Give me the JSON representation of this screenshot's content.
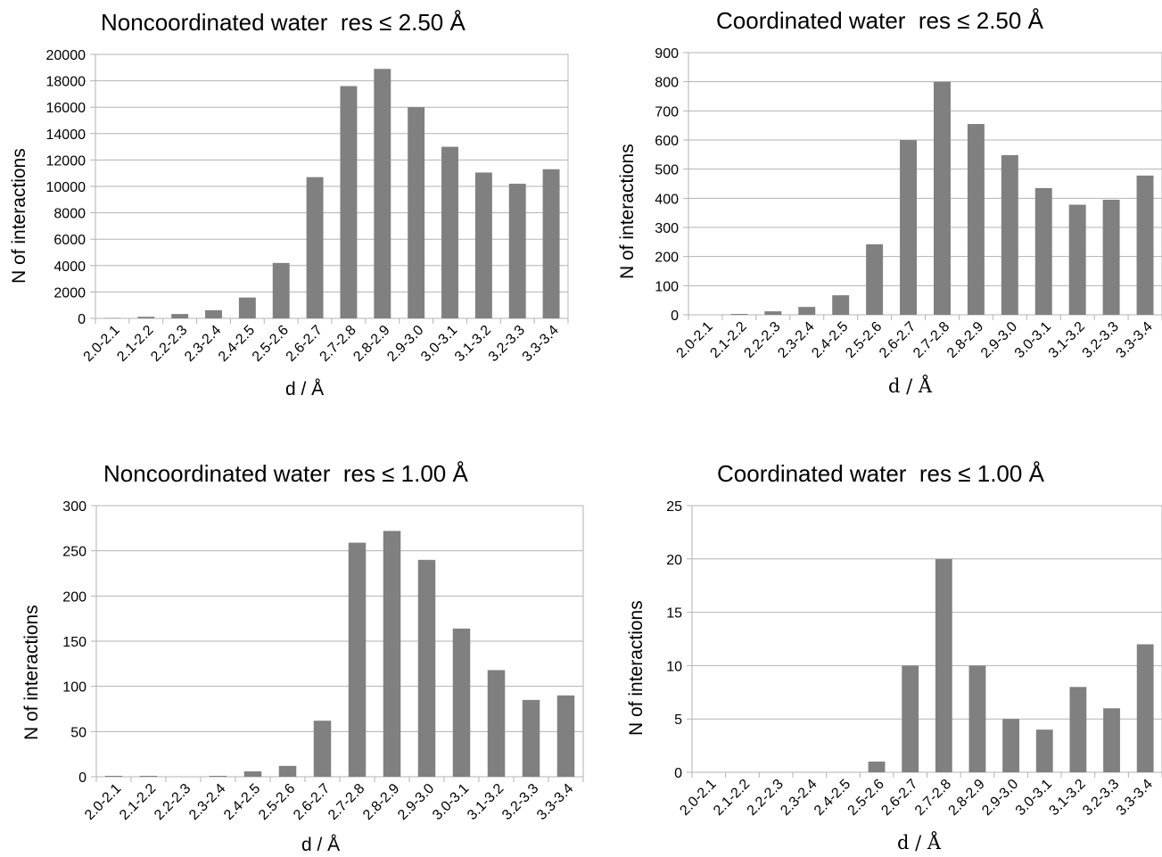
{
  "colors": {
    "bar": "#808080",
    "grid": "#b3b3b3",
    "axis": "#b3b3b3",
    "text": "#000000"
  },
  "chart_data": [
    {
      "type": "bar",
      "title": "Noncoordinated water  res ≤ 2.50 Å",
      "xlabel": "d / Å",
      "ylabel": "N of interactions",
      "categories": [
        "2.0-2.1",
        "2.1-2.2",
        "2.2-2.3",
        "2.3-2.4",
        "2.4-2.5",
        "2.5-2.6",
        "2.6-2.7",
        "2.7-2.8",
        "2.8-2.9",
        "2.9-3.0",
        "3.0-3.1",
        "3.1-3.2",
        "3.2-3.3",
        "3.3-3.4"
      ],
      "values": [
        30,
        120,
        330,
        620,
        1580,
        4200,
        10700,
        17600,
        18900,
        16000,
        13000,
        11050,
        10200,
        11300
      ],
      "ylim": [
        0,
        20000
      ],
      "yticks": [
        0,
        2000,
        4000,
        6000,
        8000,
        10000,
        12000,
        14000,
        16000,
        18000,
        20000
      ],
      "grid": true
    },
    {
      "type": "bar",
      "title": "Coordinated water  res ≤ 2.50 Å",
      "xlabel": "d / Å",
      "ylabel": "N of interactions",
      "categories": [
        "2.0-2.1",
        "2.1-2.2",
        "2.2-2.3",
        "2.3-2.4",
        "2.4-2.5",
        "2.5-2.6",
        "2.6-2.7",
        "2.7-2.8",
        "2.8-2.9",
        "2.9-3.0",
        "3.0-3.1",
        "3.1-3.2",
        "3.2-3.3",
        "3.3-3.4"
      ],
      "values": [
        0,
        3,
        12,
        27,
        67,
        242,
        600,
        800,
        655,
        548,
        435,
        378,
        395,
        478
      ],
      "ylim": [
        0,
        900
      ],
      "yticks": [
        0,
        100,
        200,
        300,
        400,
        500,
        600,
        700,
        800,
        900
      ],
      "grid": true
    },
    {
      "type": "bar",
      "title": "Noncoordinated water  res ≤ 1.00 Å",
      "xlabel": "d / Å",
      "ylabel": "N of interactions",
      "categories": [
        "2.0-2.1",
        "2.1-2.2",
        "2.2-2.3",
        "2.3-2.4",
        "2.4-2.5",
        "2.5-2.6",
        "2.6-2.7",
        "2.7-2.8",
        "2.8-2.9",
        "2.9-3.0",
        "3.0-3.1",
        "3.1-3.2",
        "3.2-3.3",
        "3.3-3.4"
      ],
      "values": [
        1,
        1,
        0,
        1,
        6,
        12,
        62,
        259,
        272,
        240,
        164,
        118,
        85,
        90
      ],
      "ylim": [
        0,
        300
      ],
      "yticks": [
        0,
        50,
        100,
        150,
        200,
        250,
        300
      ],
      "grid": true
    },
    {
      "type": "bar",
      "title": "Coordinated water  res ≤ 1.00 Å",
      "xlabel": "d / Å",
      "ylabel": "N of interactions",
      "categories": [
        "2.0-2.1",
        "2.1-2.2",
        "2.2-2.3",
        "2.3-2.4",
        "2.4-2.5",
        "2.5-2.6",
        "2.6-2.7",
        "2.7-2.8",
        "2.8-2.9",
        "2.9-3.0",
        "3.0-3.1",
        "3.1-3.2",
        "3.2-3.3",
        "3.3-3.4"
      ],
      "values": [
        0,
        0,
        0,
        0,
        0,
        1,
        10,
        20,
        10,
        5,
        4,
        8,
        6,
        12
      ],
      "ylim": [
        0,
        25
      ],
      "yticks": [
        0,
        5,
        10,
        15,
        20,
        25
      ],
      "grid": true
    }
  ]
}
